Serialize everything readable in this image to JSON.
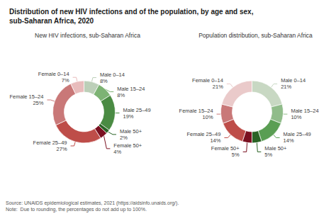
{
  "title": "Distribution of new HIV infections and of the population, by age and sex,\nsub-Saharan Africa, 2020",
  "annotations": [
    "Source: UNAIDS epidemiological estimates, 2021 (https://aidsinfo.unaids.org/).",
    "Note:  Due to rounding, the percentages do not add up to 100%."
  ],
  "chart_data": [
    {
      "type": "pie",
      "title": "New HIV infections, sub-Saharan Africa",
      "categories": [
        "Male 0–14",
        "Male 15–24",
        "Male 25–49",
        "Male 50+",
        "Female 50+",
        "Female 25–49",
        "Female 15–24",
        "Female 0–14"
      ],
      "values": [
        8,
        8,
        19,
        2,
        4,
        27,
        25,
        7
      ],
      "value_labels": [
        "8%",
        "8%",
        "19%",
        "2%",
        "4%",
        "27%",
        "25%",
        "7%"
      ],
      "colors": [
        "#bccfb8",
        "#7db374",
        "#4a8b43",
        "#2a6325",
        "#7a1020",
        "#be4d49",
        "#c97878",
        "#e8bcbc"
      ],
      "data_labels": true
    },
    {
      "type": "pie",
      "title": "Population distribution, sub-Saharan Africa",
      "categories": [
        "Male 0–14",
        "Male 15–24",
        "Male 25–49",
        "Male 50+",
        "Female 50+",
        "Female 25–49",
        "Female 15–24",
        "Female 0–14"
      ],
      "values": [
        21,
        10,
        14,
        5,
        5,
        14,
        10,
        21
      ],
      "value_labels": [
        "21%",
        "10%",
        "14%",
        "5%",
        "5%",
        "14%",
        "10%",
        "21%"
      ],
      "colors": [
        "#c8d8c3",
        "#90bc8a",
        "#5a9e53",
        "#2a6325",
        "#7a1020",
        "#be4d49",
        "#c97878",
        "#eacaca"
      ],
      "data_labels": true
    }
  ]
}
